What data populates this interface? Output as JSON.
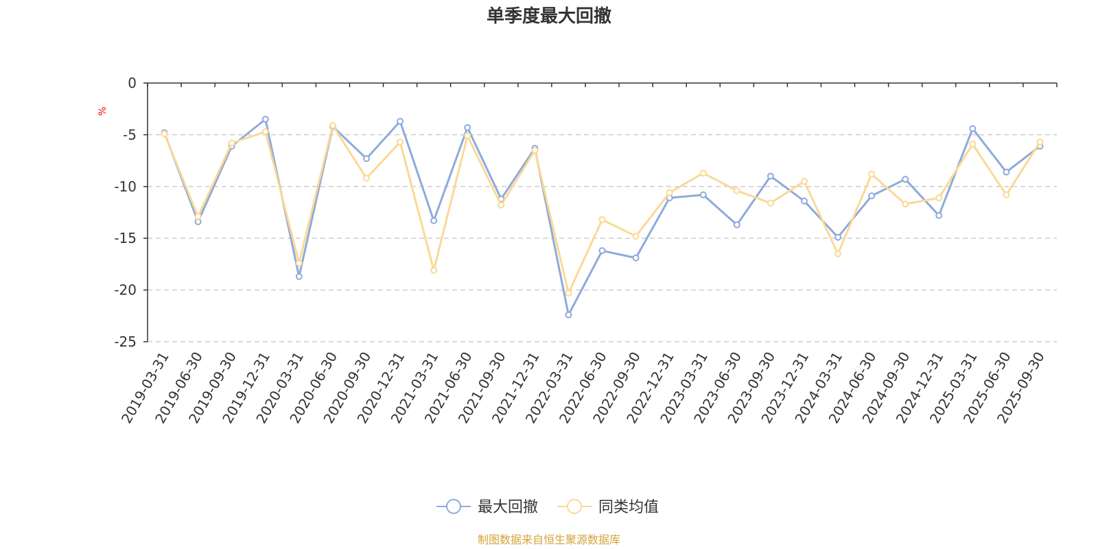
{
  "chart_data": {
    "type": "line",
    "title": "单季度最大回撤",
    "ylabel": "%",
    "xlabel": "",
    "ylim": [
      -25,
      0
    ],
    "yticks": [
      0,
      -5,
      -10,
      -15,
      -20,
      -25
    ],
    "grid": true,
    "legend_position": "bottom-center",
    "categories": [
      "2019-03-31",
      "2019-06-30",
      "2019-09-30",
      "2019-12-31",
      "2020-03-31",
      "2020-06-30",
      "2020-09-30",
      "2020-12-31",
      "2021-03-31",
      "2021-06-30",
      "2021-09-30",
      "2021-12-31",
      "2022-03-31",
      "2022-06-30",
      "2022-09-30",
      "2022-12-31",
      "2023-03-31",
      "2023-06-30",
      "2023-09-30",
      "2023-12-31",
      "2024-03-31",
      "2024-06-30",
      "2024-09-30",
      "2024-12-31",
      "2025-03-31",
      "2025-06-30",
      "2025-09-30"
    ],
    "series": [
      {
        "name": "最大回撤",
        "color": "#8eaadb",
        "values": [
          -4.8,
          -13.4,
          -6.1,
          -3.5,
          -18.7,
          -4.2,
          -7.3,
          -3.7,
          -13.3,
          -4.3,
          -11.2,
          -6.3,
          -22.4,
          -16.2,
          -16.9,
          -11.1,
          -10.8,
          -13.7,
          -9.0,
          -11.4,
          -14.9,
          -10.9,
          -9.3,
          -12.8,
          -4.4,
          -8.6,
          -6.1
        ]
      },
      {
        "name": "同类均值",
        "color": "#fad996",
        "values": [
          -4.9,
          -12.9,
          -5.8,
          -4.7,
          -17.4,
          -4.1,
          -9.2,
          -5.7,
          -18.1,
          -5.1,
          -11.8,
          -6.5,
          -20.3,
          -13.2,
          -14.8,
          -10.6,
          -8.7,
          -10.4,
          -11.6,
          -9.5,
          -16.5,
          -8.8,
          -11.7,
          -11.1,
          -5.9,
          -10.8,
          -5.7
        ]
      }
    ]
  },
  "footer": {
    "source_text": "制图数据来自恒生聚源数据库"
  },
  "colors": {
    "axis": "#333333",
    "grid": "#cccccc",
    "ylabel": "#ff0000",
    "source": "#d4a33a",
    "text": "#333333"
  }
}
